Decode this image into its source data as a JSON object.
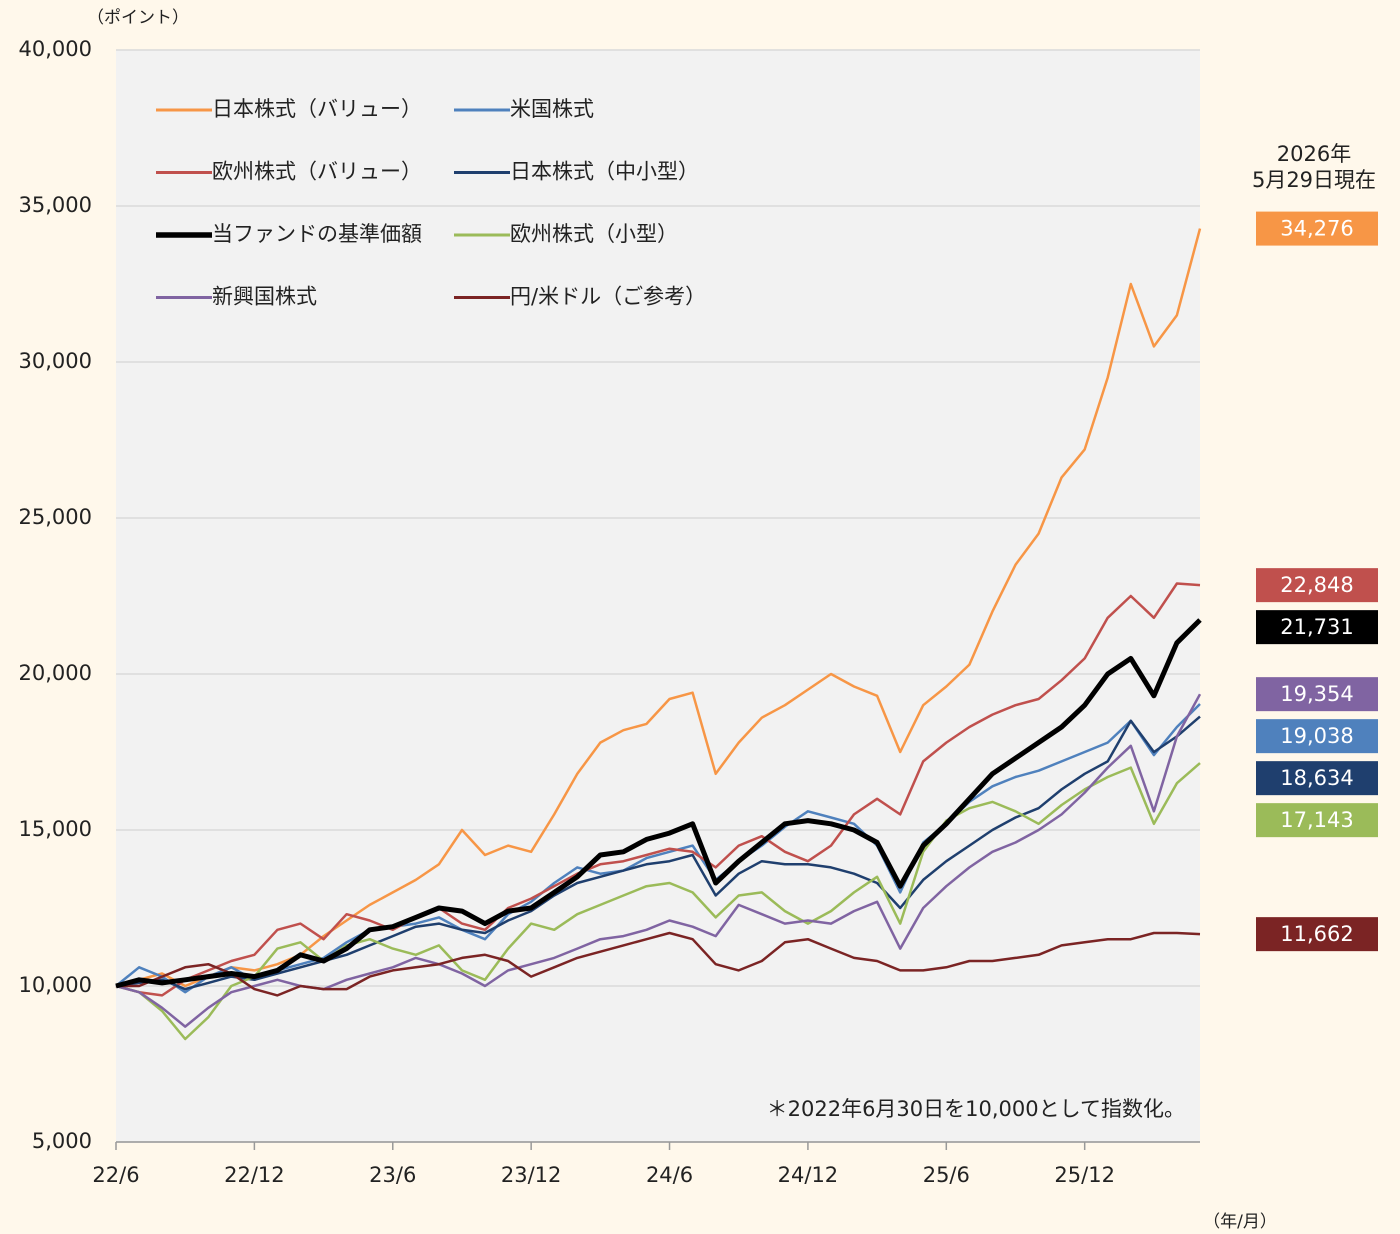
{
  "chart_data": {
    "type": "line",
    "y_axis_label": "（ポイント）",
    "x_axis_label": "（年/月）",
    "date_note": "2026年\n5月29日現在",
    "annotation": "＊2022年6月30日を10,000として指数化。",
    "x": [
      0,
      1,
      2,
      3,
      4,
      5,
      6,
      7,
      8,
      9,
      10,
      11,
      12,
      13,
      14,
      15,
      16,
      17,
      18,
      19,
      20,
      21,
      22,
      23,
      24,
      25,
      26,
      27,
      28,
      29,
      30,
      31,
      32,
      33,
      34,
      35,
      36,
      37,
      38,
      39,
      40,
      41,
      42,
      43,
      44,
      45,
      46,
      47
    ],
    "xlim": [
      0,
      47
    ],
    "xticks": [
      {
        "value": 0,
        "label": "22/6"
      },
      {
        "value": 6,
        "label": "22/12"
      },
      {
        "value": 12,
        "label": "23/6"
      },
      {
        "value": 18,
        "label": "23/12"
      },
      {
        "value": 24,
        "label": "24/6"
      },
      {
        "value": 30,
        "label": "24/12"
      },
      {
        "value": 36,
        "label": "25/6"
      },
      {
        "value": 42,
        "label": "25/12"
      }
    ],
    "ylim": [
      5000,
      40000
    ],
    "yticks": [
      {
        "value": 5000,
        "label": "5,000"
      },
      {
        "value": 10000,
        "label": "10,000"
      },
      {
        "value": 15000,
        "label": "15,000"
      },
      {
        "value": 20000,
        "label": "20,000"
      },
      {
        "value": 25000,
        "label": "25,000"
      },
      {
        "value": 30000,
        "label": "30,000"
      },
      {
        "value": 35000,
        "label": "35,000"
      },
      {
        "value": 40000,
        "label": "40,000"
      }
    ],
    "grid": true,
    "series": [
      {
        "name": "日本株式（バリュー）",
        "color": "#f79646",
        "width": 2.5,
        "end_label": "34,276",
        "values": [
          10000,
          10200,
          10400,
          10000,
          10300,
          10600,
          10500,
          10700,
          11000,
          11600,
          12100,
          12600,
          13000,
          13400,
          13900,
          15000,
          14200,
          14500,
          14300,
          15500,
          16800,
          17800,
          18200,
          18400,
          19200,
          19400,
          16800,
          17800,
          18600,
          19000,
          19500,
          20000,
          19600,
          19300,
          17500,
          19000,
          19600,
          20300,
          22000,
          23500,
          24500,
          26300,
          27200,
          29500,
          32500,
          30500,
          31500,
          34276
        ]
      },
      {
        "name": "米国株式",
        "color": "#4f81bd",
        "width": 2.5,
        "end_label": "19,038",
        "values": [
          10000,
          10600,
          10300,
          9800,
          10300,
          10600,
          10200,
          10500,
          10700,
          10900,
          11400,
          11800,
          11900,
          12000,
          12200,
          11800,
          11500,
          12300,
          12700,
          13300,
          13800,
          13600,
          13700,
          14100,
          14300,
          14500,
          13400,
          14000,
          14500,
          15100,
          15600,
          15400,
          15200,
          14500,
          13000,
          14600,
          15200,
          15900,
          16400,
          16700,
          16900,
          17200,
          17500,
          17800,
          18500,
          17400,
          18300,
          19038
        ]
      },
      {
        "name": "欧州株式（バリュー）",
        "color": "#c0504d",
        "width": 2.5,
        "end_label": "22,848",
        "values": [
          10000,
          9800,
          9700,
          10200,
          10500,
          10800,
          11000,
          11800,
          12000,
          11500,
          12300,
          12100,
          11800,
          12200,
          12500,
          12000,
          11800,
          12500,
          12800,
          13200,
          13600,
          13900,
          14000,
          14200,
          14400,
          14300,
          13800,
          14500,
          14800,
          14300,
          14000,
          14500,
          15500,
          16000,
          15500,
          17200,
          17800,
          18300,
          18700,
          19000,
          19200,
          19800,
          20500,
          21800,
          22500,
          21800,
          22900,
          22848
        ]
      },
      {
        "name": "日本株式（中小型）",
        "color": "#1f3f6e",
        "width": 2.5,
        "end_label": "18,634",
        "values": [
          10000,
          10100,
          10200,
          9900,
          10100,
          10300,
          10200,
          10400,
          10600,
          10800,
          11000,
          11300,
          11600,
          11900,
          12000,
          11800,
          11700,
          12100,
          12400,
          12900,
          13300,
          13500,
          13700,
          13900,
          14000,
          14200,
          12900,
          13600,
          14000,
          13900,
          13900,
          13800,
          13600,
          13300,
          12500,
          13400,
          14000,
          14500,
          15000,
          15400,
          15700,
          16300,
          16800,
          17200,
          18500,
          17500,
          18000,
          18634
        ]
      },
      {
        "name": "当ファンドの基準価額",
        "color": "#000000",
        "width": 5,
        "end_label": "21,731",
        "values": [
          10000,
          10200,
          10100,
          10200,
          10300,
          10400,
          10300,
          10500,
          11000,
          10800,
          11200,
          11800,
          11900,
          12200,
          12500,
          12400,
          12000,
          12400,
          12500,
          13000,
          13500,
          14200,
          14300,
          14700,
          14900,
          15200,
          13300,
          14000,
          14600,
          15200,
          15300,
          15200,
          15000,
          14600,
          13200,
          14500,
          15200,
          16000,
          16800,
          17300,
          17800,
          18300,
          19000,
          20000,
          20500,
          19300,
          21000,
          21731
        ]
      },
      {
        "name": "欧州株式（小型）",
        "color": "#9bbb59",
        "width": 2.5,
        "end_label": "17,143",
        "values": [
          10000,
          9800,
          9200,
          8300,
          9000,
          10000,
          10300,
          11200,
          11400,
          10800,
          11300,
          11500,
          11200,
          11000,
          11300,
          10500,
          10200,
          11200,
          12000,
          11800,
          12300,
          12600,
          12900,
          13200,
          13300,
          13000,
          12200,
          12900,
          13000,
          12400,
          12000,
          12400,
          13000,
          13500,
          12000,
          14300,
          15300,
          15700,
          15900,
          15600,
          15200,
          15800,
          16300,
          16700,
          17000,
          15200,
          16500,
          17143
        ]
      },
      {
        "name": "新興国株式",
        "color": "#8064a2",
        "width": 2.5,
        "end_label": "19,354",
        "values": [
          10000,
          9800,
          9300,
          8700,
          9300,
          9800,
          10000,
          10200,
          10000,
          9900,
          10200,
          10400,
          10600,
          10900,
          10700,
          10400,
          10000,
          10500,
          10700,
          10900,
          11200,
          11500,
          11600,
          11800,
          12100,
          11900,
          11600,
          12600,
          12300,
          12000,
          12100,
          12000,
          12400,
          12700,
          11200,
          12500,
          13200,
          13800,
          14300,
          14600,
          15000,
          15500,
          16200,
          17000,
          17700,
          15600,
          18000,
          19354
        ]
      },
      {
        "name": "円/米ドル（ご参考）",
        "color": "#7b2424",
        "width": 2.5,
        "end_label": "11,662",
        "values": [
          10000,
          10000,
          10300,
          10600,
          10700,
          10400,
          9900,
          9700,
          10000,
          9900,
          9900,
          10300,
          10500,
          10600,
          10700,
          10900,
          11000,
          10800,
          10300,
          10600,
          10900,
          11100,
          11300,
          11500,
          11700,
          11500,
          10700,
          10500,
          10800,
          11400,
          11500,
          11200,
          10900,
          10800,
          10500,
          10500,
          10600,
          10800,
          10800,
          10900,
          11000,
          11300,
          11400,
          11500,
          11500,
          11700,
          11700,
          11662
        ]
      }
    ]
  }
}
